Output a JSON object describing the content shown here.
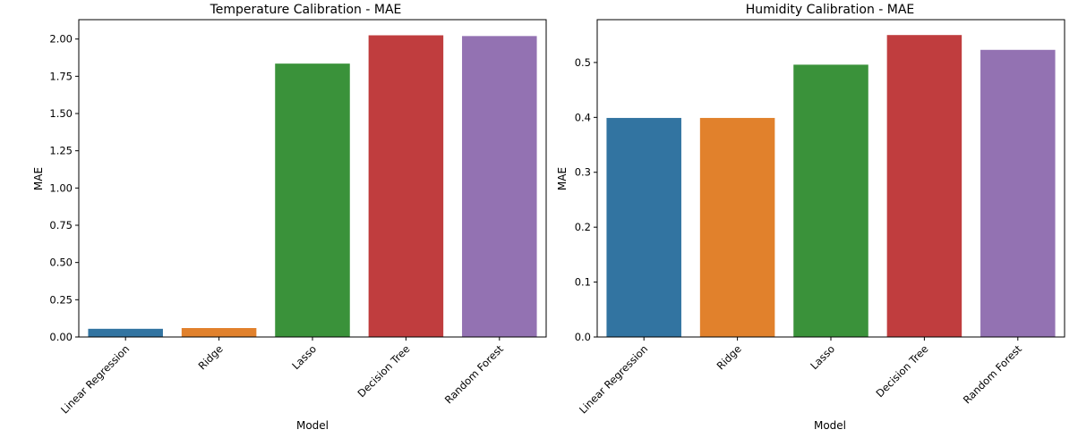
{
  "chart_data": [
    {
      "type": "bar",
      "title": "Temperature Calibration - MAE",
      "xlabel": "Model",
      "ylabel": "MAE",
      "categories": [
        "Linear Regression",
        "Ridge",
        "Lasso",
        "Decision Tree",
        "Random Forest"
      ],
      "values": [
        0.055,
        0.06,
        1.835,
        2.025,
        2.02
      ],
      "ylim": [
        0,
        2.13
      ],
      "yticks": [
        0.0,
        0.25,
        0.5,
        0.75,
        1.0,
        1.25,
        1.5,
        1.75,
        2.0
      ],
      "ytick_labels": [
        "0.00",
        "0.25",
        "0.50",
        "0.75",
        "1.00",
        "1.25",
        "1.50",
        "1.75",
        "2.00"
      ],
      "colors": [
        "#3274a1",
        "#e1812c",
        "#3a923a",
        "#c03d3e",
        "#9372b2"
      ],
      "grid": false
    },
    {
      "type": "bar",
      "title": "Humidity Calibration - MAE",
      "xlabel": "Model",
      "ylabel": "MAE",
      "categories": [
        "Linear Regression",
        "Ridge",
        "Lasso",
        "Decision Tree",
        "Random Forest"
      ],
      "values": [
        0.399,
        0.399,
        0.496,
        0.55,
        0.523
      ],
      "ylim": [
        0,
        0.578
      ],
      "yticks": [
        0.0,
        0.1,
        0.2,
        0.3,
        0.4,
        0.5
      ],
      "ytick_labels": [
        "0.0",
        "0.1",
        "0.2",
        "0.3",
        "0.4",
        "0.5"
      ],
      "colors": [
        "#3274a1",
        "#e1812c",
        "#3a923a",
        "#c03d3e",
        "#9372b2"
      ],
      "grid": false
    }
  ]
}
